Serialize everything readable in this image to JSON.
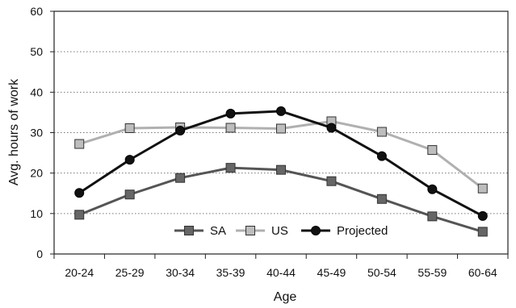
{
  "chart_data": {
    "type": "line",
    "categories": [
      "20-24",
      "25-29",
      "30-34",
      "35-39",
      "40-44",
      "45-49",
      "50-54",
      "55-59",
      "60-64"
    ],
    "series": [
      {
        "name": "SA",
        "values": [
          9.7,
          14.7,
          18.8,
          21.3,
          20.8,
          18.0,
          13.6,
          9.3,
          5.5
        ],
        "color": "#555555",
        "marker": "square",
        "marker_fill": "#666666"
      },
      {
        "name": "US",
        "values": [
          27.2,
          31.1,
          31.3,
          31.2,
          31.0,
          32.8,
          30.2,
          25.7,
          16.2
        ],
        "color": "#b0b0b0",
        "marker": "square",
        "marker_fill": "#bdbdbd"
      },
      {
        "name": "Projected",
        "values": [
          15.1,
          23.3,
          30.5,
          34.7,
          35.3,
          31.2,
          24.2,
          16.0,
          9.4
        ],
        "color": "#111111",
        "marker": "circle",
        "marker_fill": "#111111"
      }
    ],
    "xlabel": "Age",
    "ylabel": "Avg. hours of work",
    "ylim": [
      0,
      60
    ],
    "yticks": [
      "0",
      "10",
      "20",
      "30",
      "40",
      "50",
      "60"
    ],
    "grid": "horizontal-dotted",
    "legend_position": "bottom-center"
  }
}
